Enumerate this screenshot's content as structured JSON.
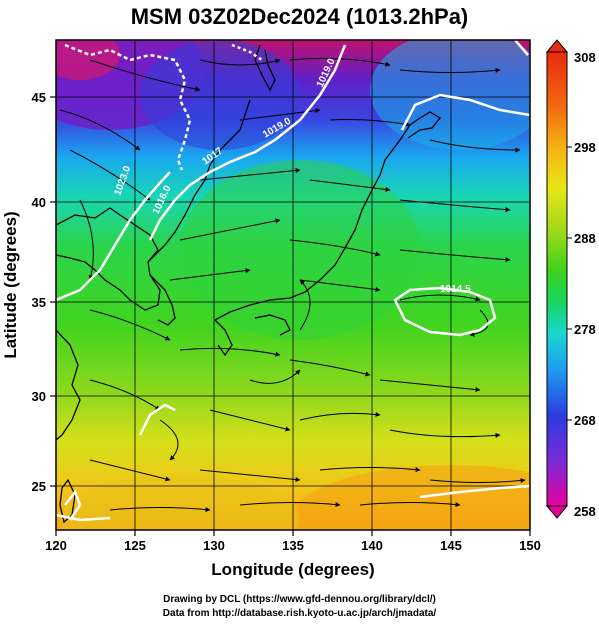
{
  "title": "MSM 03Z02Dec2024 (1013.2hPa)",
  "axes": {
    "xlabel": "Longitude (degrees)",
    "ylabel": "Latitude  (degrees)",
    "x_ticks": [
      "120",
      "125",
      "130",
      "135",
      "140",
      "145",
      "150"
    ],
    "y_ticks": [
      "25",
      "30",
      "35",
      "40",
      "45"
    ],
    "x_range": [
      120,
      150
    ],
    "y_range": [
      22.5,
      47.8
    ]
  },
  "colorbar": {
    "labels": [
      "308",
      "298",
      "288",
      "278",
      "268",
      "258"
    ],
    "min": 258,
    "max": 308,
    "colors": [
      "#e8009a",
      "#7a2ad8",
      "#2a3ce0",
      "#1e9cf0",
      "#19d6d0",
      "#19d660",
      "#3ed21c",
      "#9ad81a",
      "#e6e616",
      "#f5b814",
      "#f26a0f",
      "#ea2a10"
    ]
  },
  "isobar_labels": [
    "1023.0",
    "1016.0",
    "1017",
    "1019.0",
    "1014.5",
    "1019.0"
  ],
  "credits": {
    "line1": "Drawing by DCL (https://www.gfd-dennou.org/library/dcl/)",
    "line2": "Data from http://database.rish.kyoto-u.ac.jp/arch/jmadata/"
  }
}
